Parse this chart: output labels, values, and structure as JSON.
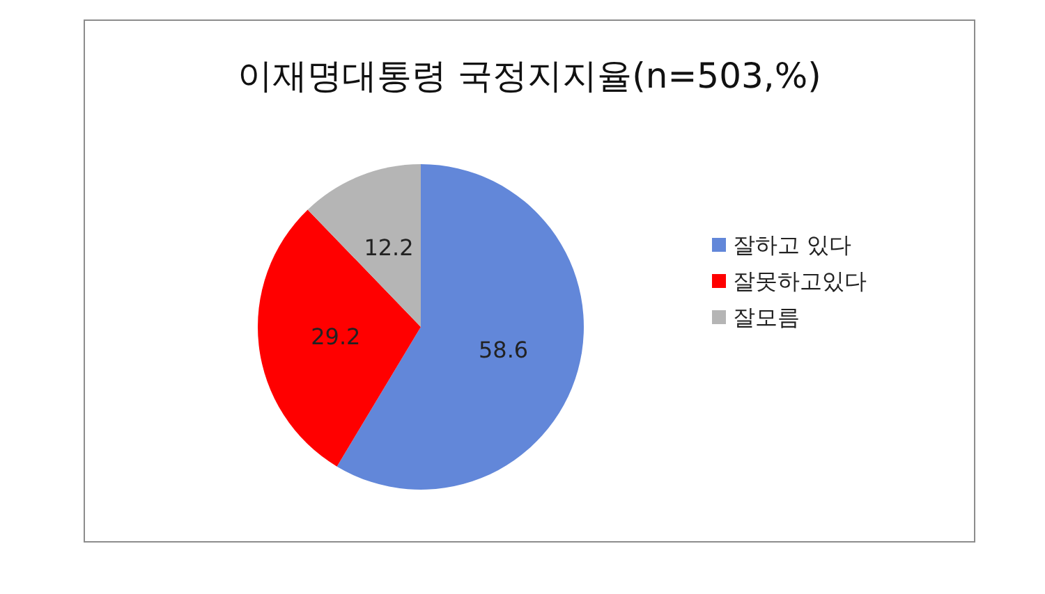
{
  "chart_data": {
    "type": "pie",
    "title": "이재명대통령 국정지지율(n=503,%)",
    "categories": [
      "잘하고 있다",
      "잘못하고있다",
      "잘모름"
    ],
    "values": [
      58.6,
      29.2,
      12.2
    ],
    "colors": [
      "#6287d9",
      "#ff0000",
      "#b5b5b5"
    ],
    "data_labels": true,
    "legend": "right"
  }
}
